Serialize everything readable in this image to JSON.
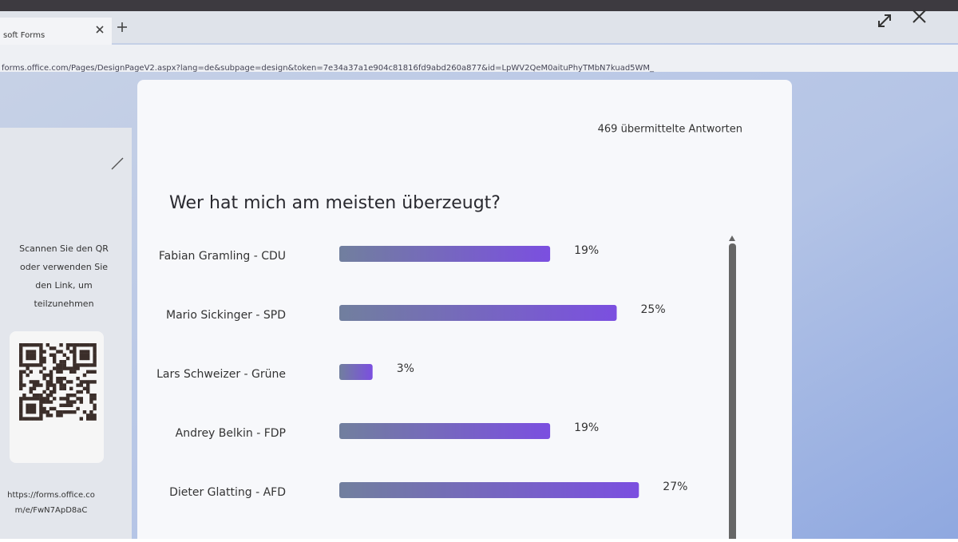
{
  "browser": {
    "tab_title": "soft Forms",
    "url": "forms.office.com/Pages/DesignPageV2.aspx?lang=de&subpage=design&token=7e34a37a1e904c81816fd9abd260a877&id=LpWV2QeM0aituPhyTMbN7kuad5WM_"
  },
  "sidebar": {
    "instructions": [
      "Scannen Sie den QR",
      "oder verwenden Sie",
      "den Link, um",
      "teilzunehmen"
    ],
    "link": [
      "https://forms.office.co",
      "m/e/FwN7ApD8aC"
    ]
  },
  "responses": "469 übermittelte Antworten",
  "chart_data": {
    "type": "bar",
    "orientation": "horizontal",
    "title": "Wer hat mich am meisten überzeugt?",
    "categories": [
      "Fabian Gramling - CDU",
      "Mario Sickinger - SPD",
      "Lars Schweizer - Grüne",
      "Andrey Belkin - FDP",
      "Dieter Glatting - AFD"
    ],
    "values": [
      19,
      25,
      3,
      19,
      27
    ],
    "value_labels": [
      "19%",
      "25%",
      "3%",
      "19%",
      "27%"
    ],
    "color": "#7b4fe0"
  }
}
